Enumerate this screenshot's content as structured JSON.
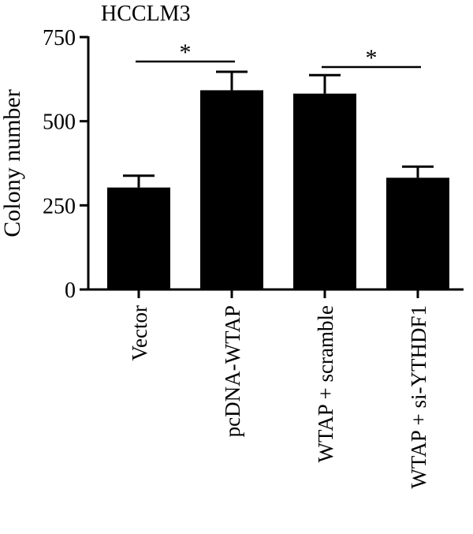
{
  "chart_data": {
    "type": "bar",
    "title": "HCCLM3",
    "ylabel": "Colony number",
    "xlabel": "",
    "ylim": [
      0,
      750
    ],
    "yticks": [
      0,
      250,
      500,
      750
    ],
    "categories": [
      "Vector",
      "pcDNA-WTAP",
      "WTAP + scramble",
      "WTAP + si-YTHDF1"
    ],
    "values": [
      303,
      592,
      582,
      332
    ],
    "errors": [
      35,
      55,
      55,
      33
    ],
    "bar_color": "#000000",
    "significance": [
      {
        "from": 0,
        "to": 1,
        "label": "*"
      },
      {
        "from": 2,
        "to": 3,
        "label": "*"
      }
    ],
    "grid": false,
    "legend": "none"
  }
}
